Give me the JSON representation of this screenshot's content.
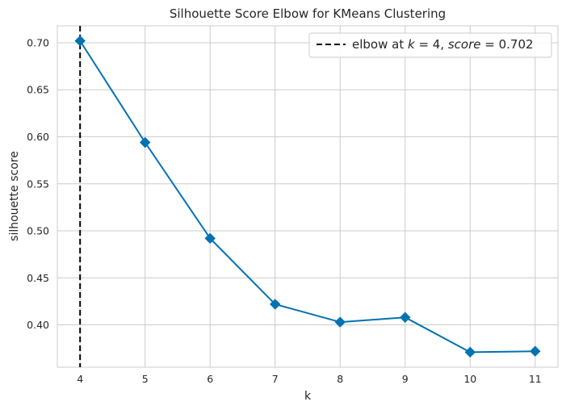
{
  "chart_data": {
    "type": "line",
    "title": "Silhouette Score Elbow for KMeans Clustering",
    "xlabel": "k",
    "ylabel": "silhouette score",
    "x": [
      4,
      5,
      6,
      7,
      8,
      9,
      10,
      11
    ],
    "series": [
      {
        "values": [
          0.702,
          0.594,
          0.492,
          0.422,
          0.403,
          0.408,
          0.371,
          0.372
        ],
        "color": "#0072b2",
        "marker": "diamond"
      }
    ],
    "xticks": [
      "4",
      "5",
      "6",
      "7",
      "8",
      "9",
      "10",
      "11"
    ],
    "yticks": [
      "0.40",
      "0.45",
      "0.50",
      "0.55",
      "0.60",
      "0.65",
      "0.70"
    ],
    "ytick_values": [
      0.4,
      0.45,
      0.5,
      0.55,
      0.6,
      0.65,
      0.7
    ],
    "xlim": [
      3.65,
      11.35
    ],
    "ylim": [
      0.355,
      0.718
    ],
    "grid": true,
    "elbow": {
      "k": 4,
      "score": 0.702,
      "color": "#000000",
      "linestyle": "dashed"
    },
    "legend": {
      "placement": "top-right",
      "prefix": "elbow at ",
      "k_symbol": "k",
      "k_eq": " = 4, ",
      "score_symbol": "score",
      "score_eq": " = 0.702"
    }
  }
}
